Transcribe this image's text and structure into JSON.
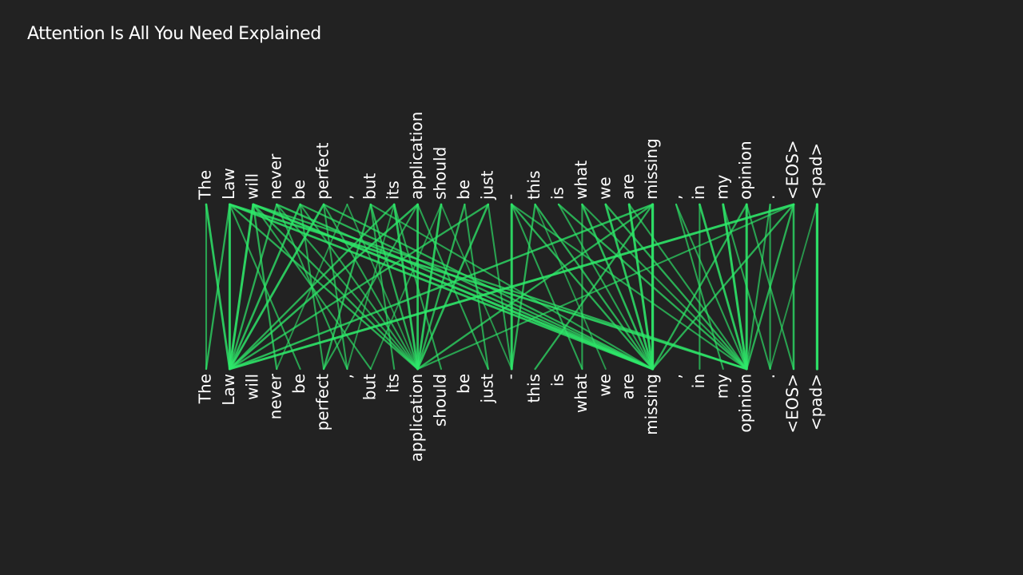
{
  "title": "Attention Is All You Need Explained",
  "colors": {
    "background": "#222222",
    "link": "#2ee86a",
    "text": "#ffffff"
  },
  "tokens": [
    "The",
    "Law",
    "will",
    "never",
    "be",
    "perfect",
    ",",
    "but",
    "its",
    "application",
    "should",
    "be",
    "just",
    "-",
    "this",
    "is",
    "what",
    "we",
    "are",
    "missing",
    ",",
    "in",
    "my",
    "opinion",
    ".",
    "<EOS>",
    "<pad>"
  ],
  "attention_links": [
    [
      0,
      0,
      0.5
    ],
    [
      0,
      1,
      0.8
    ],
    [
      1,
      0,
      0.6
    ],
    [
      1,
      1,
      0.9
    ],
    [
      1,
      4,
      0.5
    ],
    [
      1,
      9,
      0.6
    ],
    [
      1,
      19,
      0.8
    ],
    [
      1,
      23,
      0.8
    ],
    [
      2,
      1,
      0.9
    ],
    [
      2,
      3,
      0.6
    ],
    [
      2,
      7,
      0.5
    ],
    [
      2,
      9,
      0.6
    ],
    [
      2,
      19,
      0.9
    ],
    [
      2,
      23,
      0.6
    ],
    [
      3,
      1,
      0.6
    ],
    [
      3,
      6,
      0.5
    ],
    [
      3,
      9,
      0.5
    ],
    [
      3,
      19,
      0.7
    ],
    [
      4,
      1,
      0.7
    ],
    [
      4,
      5,
      0.5
    ],
    [
      4,
      9,
      0.5
    ],
    [
      4,
      19,
      0.6
    ],
    [
      5,
      1,
      0.8
    ],
    [
      5,
      6,
      0.5
    ],
    [
      5,
      9,
      0.5
    ],
    [
      5,
      19,
      0.6
    ],
    [
      6,
      3,
      0.4
    ],
    [
      6,
      9,
      0.4
    ],
    [
      7,
      5,
      0.6
    ],
    [
      7,
      9,
      0.6
    ],
    [
      7,
      8,
      0.5
    ],
    [
      7,
      19,
      0.5
    ],
    [
      8,
      1,
      0.6
    ],
    [
      8,
      9,
      0.8
    ],
    [
      8,
      6,
      0.4
    ],
    [
      8,
      10,
      0.5
    ],
    [
      9,
      1,
      0.7
    ],
    [
      9,
      9,
      0.8
    ],
    [
      9,
      12,
      0.5
    ],
    [
      9,
      5,
      0.5
    ],
    [
      10,
      9,
      0.8
    ],
    [
      10,
      7,
      0.4
    ],
    [
      10,
      13,
      0.4
    ],
    [
      11,
      9,
      0.6
    ],
    [
      11,
      12,
      0.5
    ],
    [
      12,
      9,
      0.7
    ],
    [
      12,
      13,
      0.5
    ],
    [
      12,
      1,
      0.6
    ],
    [
      13,
      13,
      0.9
    ],
    [
      13,
      19,
      0.6
    ],
    [
      13,
      16,
      0.5
    ],
    [
      13,
      23,
      0.5
    ],
    [
      14,
      13,
      0.6
    ],
    [
      14,
      19,
      0.6
    ],
    [
      14,
      17,
      0.4
    ],
    [
      15,
      19,
      0.5
    ],
    [
      15,
      23,
      0.6
    ],
    [
      16,
      19,
      0.7
    ],
    [
      16,
      16,
      0.5
    ],
    [
      16,
      23,
      0.5
    ],
    [
      17,
      19,
      0.8
    ],
    [
      17,
      23,
      0.6
    ],
    [
      18,
      19,
      0.9
    ],
    [
      18,
      23,
      0.5
    ],
    [
      19,
      19,
      1.0
    ],
    [
      19,
      14,
      0.6
    ],
    [
      19,
      1,
      0.7
    ],
    [
      19,
      9,
      0.6
    ],
    [
      20,
      22,
      0.5
    ],
    [
      20,
      23,
      0.5
    ],
    [
      21,
      23,
      0.8
    ],
    [
      21,
      21,
      0.5
    ],
    [
      22,
      23,
      0.9
    ],
    [
      22,
      24,
      0.5
    ],
    [
      23,
      23,
      0.9
    ],
    [
      23,
      25,
      0.5
    ],
    [
      23,
      19,
      0.6
    ],
    [
      24,
      24,
      0.5
    ],
    [
      24,
      23,
      0.5
    ],
    [
      25,
      1,
      0.9
    ],
    [
      25,
      25,
      0.7
    ],
    [
      25,
      19,
      0.6
    ],
    [
      25,
      9,
      0.5
    ],
    [
      25,
      23,
      0.6
    ],
    [
      26,
      26,
      1.0
    ],
    [
      26,
      24,
      0.4
    ]
  ]
}
